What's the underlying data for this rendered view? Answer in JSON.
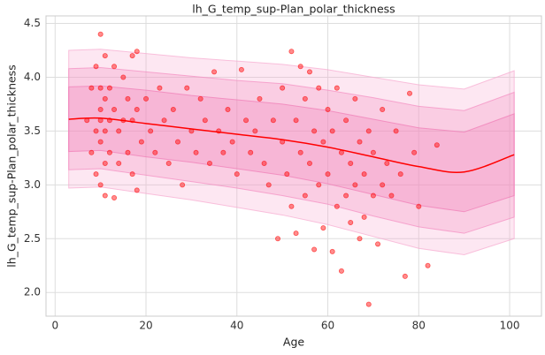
{
  "chart_data": {
    "type": "scatter",
    "title": "lh_G_temp_sup-Plan_polar_thickness",
    "x_label": "Age",
    "y_label": "lh_G_temp_sup-Plan_polar_thickness",
    "xlim": [
      -2,
      107
    ],
    "ylim": [
      1.78,
      4.57
    ],
    "xticks": [
      0,
      20,
      40,
      60,
      80,
      100
    ],
    "yticks": [
      {
        "value": 2,
        "label": "2.0"
      },
      {
        "value": 2.5,
        "label": "2.5"
      },
      {
        "value": 3,
        "label": "3.0"
      },
      {
        "value": 3.5,
        "label": "3.5"
      },
      {
        "value": 4,
        "label": "4.0"
      },
      {
        "value": 4.5,
        "label": "4.5"
      }
    ],
    "grid": true,
    "centile_x": [
      3,
      10,
      20,
      30,
      40,
      50,
      60,
      70,
      80,
      90,
      101
    ],
    "bands": [
      {
        "color": "#f7a8cf",
        "upper": [
          4.25,
          4.26,
          4.22,
          4.18,
          4.15,
          4.12,
          4.07,
          4.0,
          3.93,
          3.89,
          4.06
        ],
        "lower": [
          2.97,
          2.98,
          2.92,
          2.86,
          2.79,
          2.72,
          2.63,
          2.52,
          2.41,
          2.35,
          2.5
        ]
      },
      {
        "color": "#f48cc0",
        "upper": [
          4.08,
          4.09,
          4.05,
          4.01,
          3.97,
          3.94,
          3.88,
          3.81,
          3.73,
          3.69,
          3.86
        ],
        "lower": [
          3.14,
          3.15,
          3.09,
          3.03,
          2.97,
          2.9,
          2.82,
          2.71,
          2.61,
          2.55,
          2.7
        ]
      },
      {
        "color": "#f07ab5",
        "upper": [
          3.91,
          3.92,
          3.88,
          3.83,
          3.79,
          3.75,
          3.69,
          3.61,
          3.53,
          3.49,
          3.66
        ],
        "lower": [
          3.31,
          3.32,
          3.26,
          3.21,
          3.15,
          3.09,
          3.01,
          2.91,
          2.81,
          2.75,
          2.9
        ]
      }
    ],
    "curve": {
      "color": "#ff0000",
      "values": [
        3.61,
        3.62,
        3.57,
        3.52,
        3.47,
        3.42,
        3.35,
        3.26,
        3.17,
        3.12,
        3.28
      ]
    },
    "points": {
      "color": "#ff0000",
      "x": [
        7,
        8,
        8,
        9,
        9,
        9,
        10,
        10,
        10,
        10,
        10,
        10,
        11,
        11,
        11,
        11,
        11,
        12,
        12,
        12,
        13,
        13,
        13,
        14,
        14,
        15,
        15,
        16,
        16,
        17,
        17,
        17,
        18,
        18,
        18,
        19,
        20,
        21,
        22,
        23,
        24,
        25,
        26,
        27,
        28,
        29,
        30,
        31,
        32,
        33,
        34,
        35,
        36,
        37,
        38,
        39,
        40,
        41,
        42,
        43,
        44,
        45,
        46,
        47,
        48,
        49,
        50,
        50,
        51,
        52,
        52,
        53,
        53,
        54,
        54,
        55,
        55,
        56,
        56,
        57,
        57,
        58,
        58,
        59,
        59,
        60,
        60,
        61,
        61,
        62,
        62,
        63,
        63,
        64,
        64,
        65,
        65,
        66,
        66,
        67,
        67,
        68,
        68,
        69,
        69,
        70,
        70,
        71,
        72,
        72,
        73,
        74,
        75,
        76,
        77,
        78,
        79,
        80,
        82,
        84
      ],
      "values": [
        3.6,
        3.9,
        3.3,
        4.1,
        3.5,
        3.1,
        4.4,
        3.9,
        3.7,
        3.4,
        3.0,
        3.6,
        4.2,
        3.8,
        3.5,
        3.2,
        2.9,
        3.9,
        3.6,
        3.3,
        4.1,
        3.7,
        2.88,
        3.5,
        3.2,
        4.0,
        3.6,
        3.8,
        3.3,
        4.2,
        3.6,
        3.1,
        4.24,
        3.7,
        2.95,
        3.4,
        3.8,
        3.5,
        3.3,
        3.9,
        3.6,
        3.2,
        3.7,
        3.4,
        3.0,
        3.9,
        3.5,
        3.3,
        3.8,
        3.6,
        3.2,
        4.05,
        3.5,
        3.3,
        3.7,
        3.4,
        3.1,
        4.07,
        3.6,
        3.3,
        3.5,
        3.8,
        3.2,
        3.0,
        3.6,
        2.5,
        3.4,
        3.9,
        3.1,
        4.24,
        2.8,
        3.6,
        2.55,
        4.1,
        3.3,
        3.8,
        2.9,
        4.05,
        3.2,
        3.5,
        2.4,
        3.9,
        3.0,
        3.4,
        2.6,
        3.7,
        3.1,
        2.38,
        3.5,
        3.9,
        2.8,
        3.3,
        2.2,
        3.6,
        2.9,
        3.2,
        2.65,
        3.8,
        3.0,
        2.5,
        3.4,
        3.1,
        2.7,
        1.89,
        3.5,
        2.9,
        3.3,
        2.45,
        3.7,
        3.0,
        3.2,
        2.9,
        3.5,
        3.1,
        2.15,
        3.85,
        3.3,
        2.8,
        2.25,
        3.37
      ]
    }
  }
}
